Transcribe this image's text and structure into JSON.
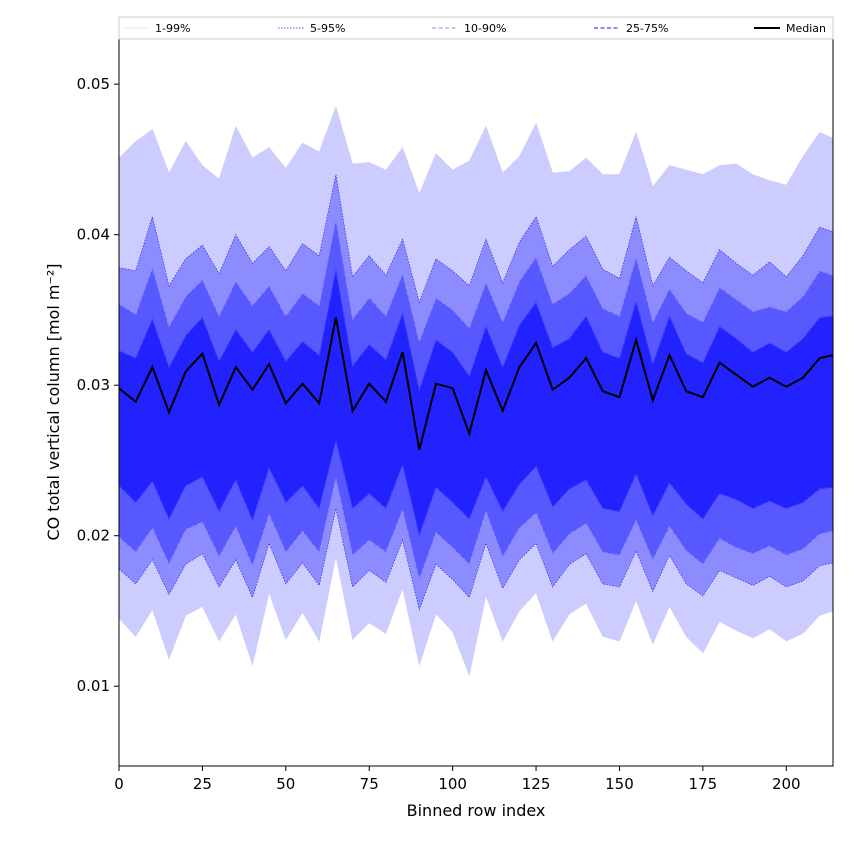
{
  "chart_data": {
    "type": "area",
    "title": "",
    "xlabel": "Binned row index",
    "ylabel": "CO total vertical column [mol m⁻²]",
    "xlim": [
      0,
      214
    ],
    "ylim": [
      0.0047,
      0.053
    ],
    "grid": false,
    "legend_position": "top",
    "x_ticks": [
      0,
      25,
      50,
      75,
      100,
      125,
      150,
      175,
      200
    ],
    "x_tick_labels": [
      "0",
      "25",
      "50",
      "75",
      "100",
      "125",
      "150",
      "175",
      "200"
    ],
    "y_ticks": [
      0.01,
      0.02,
      0.03,
      0.04,
      0.05
    ],
    "y_tick_labels": [
      "0.01",
      "0.02",
      "0.03",
      "0.04",
      "0.05"
    ],
    "legend": [
      {
        "label": "1-99%",
        "color": "#ccccff",
        "dash": "solid",
        "width": 0.5
      },
      {
        "label": "5-95%",
        "color": "#2222ee",
        "dash": "dotted",
        "width": 0.7
      },
      {
        "label": "10-90%",
        "color": "#8888ff",
        "dash": "dashed",
        "width": 1
      },
      {
        "label": "25-75%",
        "color": "#4444ff",
        "dash": "dashed",
        "width": 1.2
      },
      {
        "label": "Median",
        "color": "#000000",
        "dash": "solid",
        "width": 2
      }
    ],
    "band_fills": {
      "1-99%": "#ccccff",
      "5-95%": "#8c8cff",
      "10-90%": "#5858ff",
      "25-75%": "#2222ff"
    },
    "x": [
      0,
      5,
      10,
      15,
      20,
      25,
      30,
      35,
      40,
      45,
      50,
      55,
      60,
      65,
      70,
      75,
      80,
      85,
      90,
      95,
      100,
      105,
      110,
      115,
      120,
      125,
      130,
      135,
      140,
      145,
      150,
      155,
      160,
      165,
      170,
      175,
      180,
      185,
      190,
      195,
      200,
      205,
      210,
      214
    ],
    "series": [
      {
        "name": "Median",
        "values": [
          0.0298,
          0.0289,
          0.0312,
          0.0282,
          0.0309,
          0.0321,
          0.0287,
          0.0312,
          0.0297,
          0.0314,
          0.0288,
          0.0301,
          0.0288,
          0.0345,
          0.0283,
          0.0301,
          0.0289,
          0.0322,
          0.0257,
          0.0301,
          0.0298,
          0.0268,
          0.031,
          0.0283,
          0.0312,
          0.0328,
          0.0297,
          0.0305,
          0.0318,
          0.0296,
          0.0292,
          0.033,
          0.029,
          0.032,
          0.0296,
          0.0292,
          0.0315,
          0.0307,
          0.0299,
          0.0305,
          0.0299,
          0.0305,
          0.0318,
          0.032
        ]
      },
      {
        "name": "1-99% upper",
        "values": [
          0.0451,
          0.0462,
          0.047,
          0.0441,
          0.0462,
          0.0446,
          0.0437,
          0.0472,
          0.0451,
          0.0458,
          0.0444,
          0.0461,
          0.0455,
          0.0485,
          0.0447,
          0.0448,
          0.0443,
          0.0458,
          0.0427,
          0.0454,
          0.0443,
          0.0449,
          0.0472,
          0.0441,
          0.0452,
          0.0474,
          0.0441,
          0.0442,
          0.0451,
          0.044,
          0.044,
          0.0468,
          0.0432,
          0.0446,
          0.0443,
          0.044,
          0.0446,
          0.0447,
          0.044,
          0.0436,
          0.0433,
          0.0452,
          0.0468,
          0.0464
        ]
      },
      {
        "name": "5-95% upper",
        "values": [
          0.0378,
          0.0376,
          0.0412,
          0.0366,
          0.0384,
          0.0393,
          0.0374,
          0.04,
          0.0381,
          0.0392,
          0.0376,
          0.0394,
          0.0386,
          0.044,
          0.0372,
          0.0386,
          0.0373,
          0.0397,
          0.0355,
          0.0384,
          0.0376,
          0.0366,
          0.0397,
          0.0368,
          0.0395,
          0.0412,
          0.0379,
          0.039,
          0.0399,
          0.0377,
          0.0371,
          0.0412,
          0.0366,
          0.0385,
          0.0376,
          0.0368,
          0.039,
          0.0381,
          0.0373,
          0.0382,
          0.0372,
          0.0386,
          0.0405,
          0.0402
        ]
      },
      {
        "name": "10-90% upper",
        "values": [
          0.0354,
          0.0347,
          0.0378,
          0.0339,
          0.0359,
          0.037,
          0.0346,
          0.0369,
          0.0353,
          0.0366,
          0.0346,
          0.0361,
          0.0353,
          0.041,
          0.0344,
          0.0358,
          0.0346,
          0.0374,
          0.0329,
          0.0358,
          0.035,
          0.0338,
          0.0368,
          0.0342,
          0.0369,
          0.0385,
          0.0354,
          0.0361,
          0.0373,
          0.0351,
          0.0346,
          0.0385,
          0.0342,
          0.0364,
          0.0348,
          0.0342,
          0.0365,
          0.0357,
          0.0349,
          0.0352,
          0.0349,
          0.0359,
          0.0376,
          0.0373
        ]
      },
      {
        "name": "25-75% upper",
        "values": [
          0.0323,
          0.0318,
          0.0344,
          0.0312,
          0.0333,
          0.0345,
          0.0316,
          0.0337,
          0.0322,
          0.0337,
          0.0316,
          0.0329,
          0.032,
          0.0377,
          0.0313,
          0.0327,
          0.0317,
          0.0348,
          0.0297,
          0.033,
          0.0322,
          0.0306,
          0.0339,
          0.0312,
          0.034,
          0.0355,
          0.0325,
          0.0331,
          0.0346,
          0.0322,
          0.0318,
          0.0356,
          0.0314,
          0.0346,
          0.0321,
          0.0315,
          0.0339,
          0.0331,
          0.0322,
          0.0328,
          0.0322,
          0.0331,
          0.0345,
          0.0346
        ]
      },
      {
        "name": "25-75% lower",
        "values": [
          0.0233,
          0.0222,
          0.0236,
          0.0211,
          0.0233,
          0.0239,
          0.0216,
          0.0237,
          0.021,
          0.0245,
          0.0222,
          0.0233,
          0.0218,
          0.0263,
          0.0218,
          0.0228,
          0.0218,
          0.0247,
          0.02,
          0.0232,
          0.0222,
          0.0211,
          0.0239,
          0.0216,
          0.0234,
          0.0246,
          0.0219,
          0.0231,
          0.0237,
          0.0218,
          0.0216,
          0.0241,
          0.0213,
          0.0235,
          0.0221,
          0.0211,
          0.0228,
          0.0224,
          0.0218,
          0.0223,
          0.0218,
          0.0222,
          0.0231,
          0.0232
        ]
      },
      {
        "name": "10-90% lower",
        "values": [
          0.0199,
          0.0189,
          0.0205,
          0.0181,
          0.0204,
          0.0209,
          0.0186,
          0.0206,
          0.018,
          0.0214,
          0.0189,
          0.0203,
          0.0189,
          0.0238,
          0.0187,
          0.0197,
          0.0189,
          0.0217,
          0.0171,
          0.0202,
          0.0192,
          0.0181,
          0.0216,
          0.0186,
          0.0205,
          0.0215,
          0.0188,
          0.0201,
          0.0208,
          0.0189,
          0.0187,
          0.021,
          0.0184,
          0.0206,
          0.019,
          0.0181,
          0.0198,
          0.0192,
          0.0188,
          0.0193,
          0.0187,
          0.0191,
          0.0201,
          0.0203
        ]
      },
      {
        "name": "5-95% lower",
        "values": [
          0.0178,
          0.0168,
          0.0184,
          0.0161,
          0.0181,
          0.0188,
          0.0166,
          0.0184,
          0.0159,
          0.0195,
          0.0168,
          0.0182,
          0.0167,
          0.0218,
          0.0166,
          0.0177,
          0.0169,
          0.0197,
          0.0151,
          0.0181,
          0.0171,
          0.0159,
          0.0195,
          0.0165,
          0.0184,
          0.0195,
          0.0166,
          0.0181,
          0.0188,
          0.0168,
          0.0166,
          0.019,
          0.0163,
          0.0187,
          0.0168,
          0.016,
          0.0177,
          0.0172,
          0.0167,
          0.0173,
          0.0166,
          0.017,
          0.018,
          0.0182
        ]
      },
      {
        "name": "1-99% lower",
        "values": [
          0.0145,
          0.0133,
          0.0151,
          0.0118,
          0.0147,
          0.0153,
          0.013,
          0.0148,
          0.0114,
          0.0162,
          0.0131,
          0.0149,
          0.013,
          0.0186,
          0.0131,
          0.0142,
          0.0135,
          0.0165,
          0.0114,
          0.0148,
          0.0136,
          0.0107,
          0.016,
          0.013,
          0.015,
          0.0162,
          0.013,
          0.0148,
          0.0155,
          0.0133,
          0.013,
          0.0157,
          0.0128,
          0.0153,
          0.0133,
          0.0122,
          0.0143,
          0.0137,
          0.0132,
          0.0138,
          0.013,
          0.0135,
          0.0147,
          0.015
        ]
      }
    ]
  }
}
